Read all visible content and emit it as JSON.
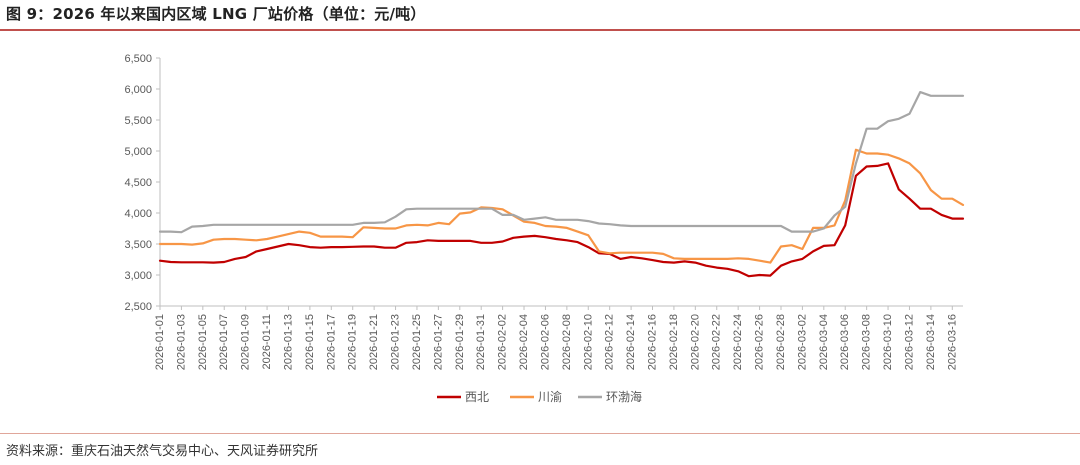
{
  "header": {
    "title": "图 9：2026 年以来国内区域 LNG 厂站价格（单位：元/吨）"
  },
  "footer": {
    "source": "资料来源：重庆石油天然气交易中心、天风证券研究所"
  },
  "colors": {
    "accent_rule": "#c0504d"
  },
  "chart_data": {
    "type": "line",
    "title": "",
    "xlabel": "",
    "ylabel": "",
    "ylim": [
      2500,
      6500
    ],
    "yticks": [
      2500,
      3000,
      3500,
      4000,
      4500,
      5000,
      5500,
      6000,
      6500
    ],
    "ytick_labels": [
      "2,500",
      "3,000",
      "3,500",
      "4,000",
      "4,500",
      "5,000",
      "5,500",
      "6,000",
      "6,500"
    ],
    "grid": false,
    "legend_position": "bottom",
    "x": [
      "2026-01-01",
      "2026-01-02",
      "2026-01-03",
      "2026-01-04",
      "2026-01-05",
      "2026-01-06",
      "2026-01-07",
      "2026-01-08",
      "2026-01-09",
      "2026-01-10",
      "2026-01-11",
      "2026-01-12",
      "2026-01-13",
      "2026-01-14",
      "2026-01-15",
      "2026-01-16",
      "2026-01-17",
      "2026-01-18",
      "2026-01-19",
      "2026-01-20",
      "2026-01-21",
      "2026-01-22",
      "2026-01-23",
      "2026-01-24",
      "2026-01-25",
      "2026-01-26",
      "2026-01-27",
      "2026-01-28",
      "2026-01-29",
      "2026-01-30",
      "2026-01-31",
      "2026-02-01",
      "2026-02-02",
      "2026-02-03",
      "2026-02-04",
      "2026-02-05",
      "2026-02-06",
      "2026-02-07",
      "2026-02-08",
      "2026-02-09",
      "2026-02-10",
      "2026-02-11",
      "2026-02-12",
      "2026-02-13",
      "2026-02-14",
      "2026-02-15",
      "2026-02-16",
      "2026-02-17",
      "2026-02-18",
      "2026-02-19",
      "2026-02-20",
      "2026-02-21",
      "2026-02-22",
      "2026-02-23",
      "2026-02-24",
      "2026-02-25",
      "2026-02-26",
      "2026-02-27",
      "2026-02-28",
      "2026-03-01",
      "2026-03-02",
      "2026-03-03",
      "2026-03-04",
      "2026-03-05",
      "2026-03-06",
      "2026-03-07",
      "2026-03-08",
      "2026-03-09",
      "2026-03-10",
      "2026-03-11",
      "2026-03-12",
      "2026-03-13",
      "2026-03-14",
      "2026-03-15",
      "2026-03-16",
      "2026-03-17"
    ],
    "xtick_labels": [
      "2026-01-01",
      "2026-01-03",
      "2026-01-05",
      "2026-01-07",
      "2026-01-09",
      "2026-01-11",
      "2026-01-13",
      "2026-01-15",
      "2026-01-17",
      "2026-01-19",
      "2026-01-21",
      "2026-01-23",
      "2026-01-25",
      "2026-01-27",
      "2026-01-29",
      "2026-01-31",
      "2026-02-02",
      "2026-02-04",
      "2026-02-06",
      "2026-02-08",
      "2026-02-10",
      "2026-02-12",
      "2026-02-14",
      "2026-02-16",
      "2026-02-18",
      "2026-02-20",
      "2026-02-22",
      "2026-02-24",
      "2026-02-26",
      "2026-02-28",
      "2026-03-02",
      "2026-03-04",
      "2026-03-06",
      "2026-03-08",
      "2026-03-10",
      "2026-03-12",
      "2026-03-14",
      "2026-03-16"
    ],
    "series": [
      {
        "name": "西北",
        "color": "#c00000",
        "values": [
          3230,
          3210,
          3205,
          3205,
          3205,
          3200,
          3210,
          3260,
          3290,
          3380,
          3420,
          3460,
          3500,
          3480,
          3450,
          3440,
          3450,
          3450,
          3455,
          3460,
          3460,
          3440,
          3440,
          3520,
          3530,
          3560,
          3550,
          3550,
          3550,
          3550,
          3520,
          3520,
          3540,
          3600,
          3620,
          3630,
          3610,
          3580,
          3560,
          3530,
          3450,
          3350,
          3340,
          3260,
          3290,
          3270,
          3240,
          3210,
          3200,
          3220,
          3200,
          3150,
          3120,
          3100,
          3060,
          2980,
          3000,
          2990,
          3150,
          3220,
          3260,
          3380,
          3470,
          3480,
          3800,
          4600,
          4750,
          4760,
          4800,
          4380,
          4230,
          4070,
          4070,
          3970,
          3910,
          3910
        ]
      },
      {
        "name": "川渝",
        "color": "#f79646",
        "values": [
          3500,
          3500,
          3500,
          3490,
          3510,
          3570,
          3580,
          3580,
          3570,
          3560,
          3580,
          3620,
          3660,
          3700,
          3680,
          3620,
          3620,
          3620,
          3610,
          3770,
          3760,
          3750,
          3750,
          3800,
          3810,
          3800,
          3840,
          3820,
          3990,
          4010,
          4090,
          4080,
          4060,
          3960,
          3860,
          3840,
          3790,
          3780,
          3760,
          3700,
          3640,
          3380,
          3350,
          3360,
          3360,
          3360,
          3360,
          3340,
          3270,
          3260,
          3260,
          3260,
          3260,
          3260,
          3270,
          3260,
          3230,
          3200,
          3460,
          3480,
          3420,
          3760,
          3760,
          3800,
          4200,
          5020,
          4960,
          4960,
          4940,
          4880,
          4800,
          4640,
          4370,
          4230,
          4230,
          4130
        ]
      },
      {
        "name": "环渤海",
        "color": "#a6a6a6",
        "values": [
          3700,
          3700,
          3690,
          3780,
          3790,
          3810,
          3810,
          3810,
          3810,
          3810,
          3810,
          3810,
          3810,
          3810,
          3810,
          3810,
          3810,
          3810,
          3810,
          3840,
          3840,
          3850,
          3940,
          4060,
          4070,
          4070,
          4070,
          4070,
          4070,
          4070,
          4070,
          4070,
          3970,
          3970,
          3890,
          3910,
          3930,
          3890,
          3890,
          3890,
          3870,
          3830,
          3820,
          3800,
          3790,
          3790,
          3790,
          3790,
          3790,
          3790,
          3790,
          3790,
          3790,
          3790,
          3790,
          3790,
          3790,
          3790,
          3790,
          3700,
          3700,
          3700,
          3750,
          3960,
          4100,
          4800,
          5360,
          5360,
          5480,
          5520,
          5600,
          5950,
          5890,
          5890,
          5890,
          5890
        ]
      }
    ]
  }
}
